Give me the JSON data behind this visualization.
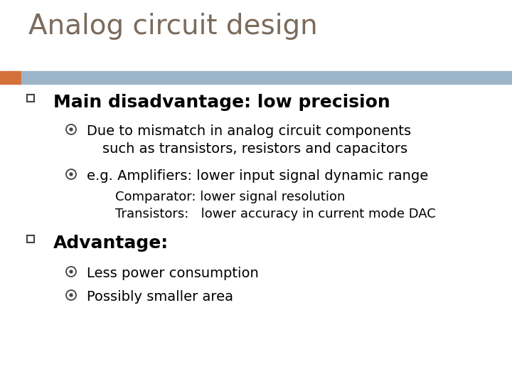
{
  "title": "Analog circuit design",
  "title_color": "#7B6B5C",
  "title_fontsize": 28,
  "bg_color": "#FFFFFF",
  "header_bar_color": "#9DB5C8",
  "header_bar_left_color": "#D4703A",
  "bullet1_text": "Main disadvantage: low precision",
  "bullet1_fontsize": 18,
  "bullet1_color": "#000000",
  "sub1a_line1": "Due to mismatch in analog circuit components",
  "sub1a_line2": "such as transistors, resistors and capacitors",
  "sub1b": "e.g. Amplifiers: lower input signal dynamic range",
  "sub1c": "Comparator: lower signal resolution",
  "sub1d": "Transistors:   lower accuracy in current mode DAC",
  "sub_fontsize": 14,
  "sub_color": "#000000",
  "bullet2_text": "Advantage:",
  "bullet2_fontsize": 18,
  "bullet2_color": "#000000",
  "sub2a": "Less power consumption",
  "sub2b": "Possibly smaller area",
  "square_color": "#444444",
  "circle_color": "#444444"
}
